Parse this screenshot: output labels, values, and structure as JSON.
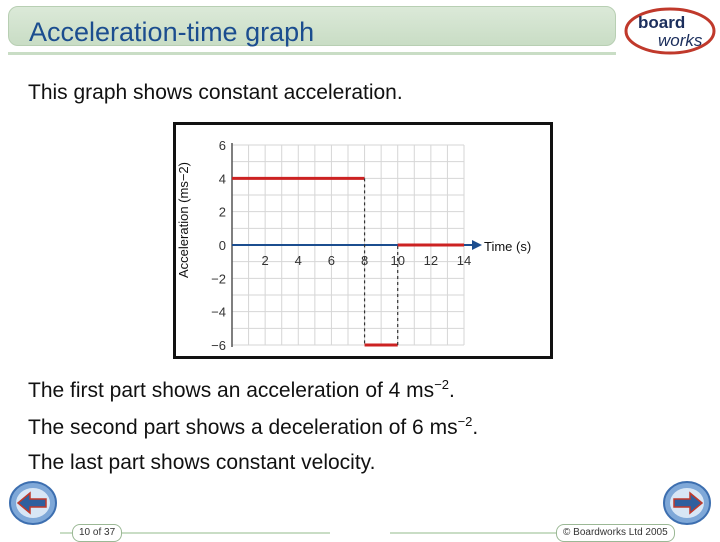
{
  "header": {
    "title": "Acceleration-time graph"
  },
  "logo": {
    "line1": "board",
    "line2": "works"
  },
  "intro": "This graph shows constant acceleration.",
  "chart_data": {
    "type": "line",
    "title": "",
    "xlabel": "Time (s)",
    "ylabel": "Acceleration (ms−2)",
    "xlim": [
      0,
      14
    ],
    "ylim": [
      -6,
      6
    ],
    "x_ticks": [
      "2",
      "4",
      "6",
      "8",
      "10",
      "12",
      "14"
    ],
    "y_ticks": [
      "6",
      "4",
      "2",
      "0",
      "−2",
      "−4",
      "−6"
    ],
    "grid": true,
    "series": [
      {
        "points": [
          [
            0,
            4
          ],
          [
            8,
            4
          ],
          [
            8,
            -6
          ],
          [
            10,
            -6
          ],
          [
            10,
            0
          ],
          [
            14,
            0
          ]
        ]
      }
    ]
  },
  "description": {
    "line1": "The first part shows an acceleration of 4 ms",
    "line1_sup": "−2",
    "line1_end": ".",
    "line2": "The second part shows a deceleration of 6 ms",
    "line2_sup": "−2",
    "line2_end": ".",
    "line3": "The last part shows constant velocity."
  },
  "footer": {
    "page": "10 of 37",
    "copyright": "© Boardworks Ltd 2005"
  },
  "colors": {
    "series": "#cc2222",
    "title": "#1b4d8f",
    "header_bg": "#c9ddc5"
  }
}
